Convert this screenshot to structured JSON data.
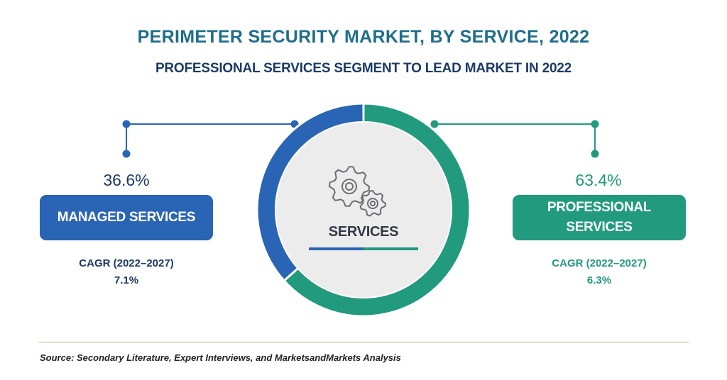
{
  "title": "PERIMETER SECURITY MARKET, BY SERVICE, 2022",
  "subtitle": "PROFESSIONAL SERVICES SEGMENT TO LEAD MARKET IN 2022",
  "center_label": "SERVICES",
  "center_icon": "gears-icon",
  "source": "Source: Secondary Literature, Expert Interviews, and MarketsandMarkets Analysis",
  "colors": {
    "title": "#1e6e8c",
    "subtitle": "#1a3a66",
    "managed": "#2a64b4",
    "professional": "#229a7e",
    "inner_circle": "#ececec"
  },
  "chart_data": {
    "type": "pie",
    "variant": "donut",
    "title": "PERIMETER SECURITY MARKET, BY SERVICE, 2022",
    "subtitle": "PROFESSIONAL SERVICES SEGMENT TO LEAD MARKET IN 2022",
    "segments": [
      {
        "name": "MANAGED SERVICES",
        "share_label": "36.6%",
        "value": 36.6,
        "cagr_label": "CAGR (2022–2027)",
        "cagr_value": "7.1%",
        "color": "#2a64b4"
      },
      {
        "name": "PROFESSIONAL SERVICES",
        "share_label": "63.4%",
        "value": 63.4,
        "cagr_label": "CAGR (2022–2027)",
        "cagr_value": "6.3%",
        "color": "#229a7e"
      }
    ]
  }
}
